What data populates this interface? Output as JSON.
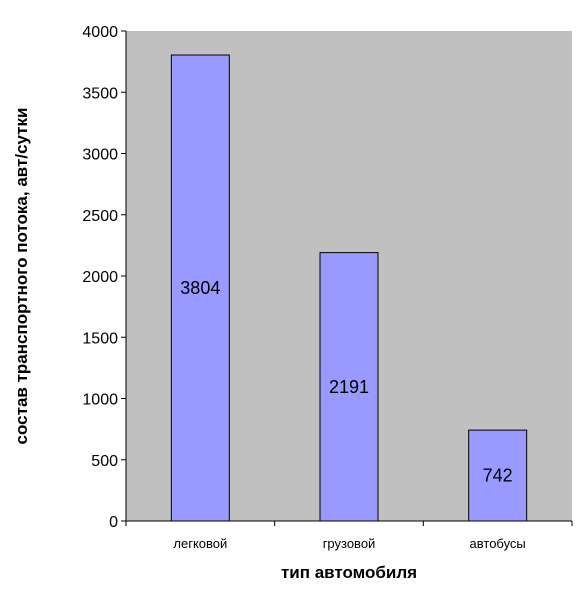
{
  "chart_data": {
    "type": "bar",
    "categories": [
      "легковой",
      "грузовой",
      "автобусы"
    ],
    "values": [
      3804,
      2191,
      742
    ],
    "xlabel": "тип автомобиля",
    "ylabel": "состав транспортного потока, авт/сутки",
    "ylim": [
      0,
      4000
    ],
    "yticks": [
      0,
      500,
      1000,
      1500,
      2000,
      2500,
      3000,
      3500,
      4000
    ],
    "grid": false,
    "legend": "none",
    "colors": {
      "plot_background": "#c0c0c0",
      "bar_fill": "#9999ff",
      "bar_stroke": "#000000"
    }
  }
}
